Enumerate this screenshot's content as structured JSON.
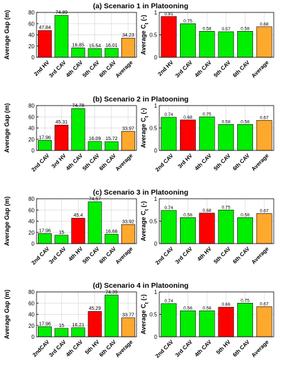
{
  "colors": {
    "hv": "#ff0000",
    "cav": "#00ee00",
    "avg": "#ffa82e",
    "edge": "#000000",
    "grid": "#d9d9d9"
  },
  "chart_data": [
    {
      "type": "bar",
      "title": "(a) Scenario 1 in Platooning",
      "panel": "gap",
      "ylabel": "Average Gap (m)",
      "ylim": [
        0,
        80
      ],
      "yticks": [
        0,
        20,
        40,
        60,
        80
      ],
      "grid": true,
      "categories": [
        "2nd HV",
        "3rd CAV",
        "4th CAV",
        "5th CAV",
        "6th CAV",
        "Average"
      ],
      "values": [
        47.84,
        74.89,
        16.85,
        15.54,
        16.01,
        34.23
      ],
      "labels": [
        "47.84",
        "74.89",
        "16.85",
        "15.54",
        "16.01",
        "34.23"
      ],
      "kinds": [
        "hv",
        "cav",
        "cav",
        "cav",
        "cav",
        "avg"
      ]
    },
    {
      "type": "bar",
      "title": "",
      "panel": "ct",
      "ylabel": "Average C",
      "ylabel_sub": "t",
      "ylabel_unit": " (-)",
      "ylim": [
        0,
        1
      ],
      "yticks": [
        0,
        0.5,
        1
      ],
      "grid": true,
      "categories": [
        "2nd HV",
        "3rd CAV",
        "4th CAV",
        "5th CAV",
        "6th CAV",
        "Average"
      ],
      "values": [
        0.91,
        0.75,
        0.58,
        0.57,
        0.58,
        0.68
      ],
      "labels": [
        "0.91",
        "0.75",
        "0.58",
        "0.57",
        "0.58",
        "0.68"
      ],
      "kinds": [
        "hv",
        "cav",
        "cav",
        "cav",
        "cav",
        "avg"
      ]
    },
    {
      "type": "bar",
      "title": "(b) Scenario 2 in Platooning",
      "panel": "gap",
      "ylabel": "Average Gap (m)",
      "ylim": [
        0,
        80
      ],
      "yticks": [
        0,
        20,
        40,
        60,
        80
      ],
      "grid": true,
      "categories": [
        "2nd CAV",
        "3rd HV",
        "4th CAV",
        "5th CAV",
        "6th CAV",
        "Average"
      ],
      "values": [
        17.96,
        45.31,
        74.78,
        16.09,
        15.72,
        33.97
      ],
      "labels": [
        "17.96",
        "45.31",
        "74.78",
        "16.09",
        "15.72",
        "33.97"
      ],
      "kinds": [
        "cav",
        "hv",
        "cav",
        "cav",
        "cav",
        "avg"
      ]
    },
    {
      "type": "bar",
      "title": "",
      "panel": "ct",
      "ylabel": "Average C",
      "ylabel_sub": "t",
      "ylabel_unit": " (-)",
      "ylim": [
        0,
        1
      ],
      "yticks": [
        0,
        0.5,
        1
      ],
      "grid": true,
      "categories": [
        "2nd CAV",
        "3rd HV",
        "4th CAV",
        "5th CAV",
        "6th CAV",
        "Average"
      ],
      "values": [
        0.74,
        0.68,
        0.75,
        0.58,
        0.58,
        0.67
      ],
      "labels": [
        "0.74",
        "0.68",
        "0.75",
        "0.58",
        "0.58",
        "0.67"
      ],
      "kinds": [
        "cav",
        "hv",
        "cav",
        "cav",
        "cav",
        "avg"
      ]
    },
    {
      "type": "bar",
      "title": "(c) Scenario 3 in Platooning",
      "panel": "gap",
      "ylabel": "Average Gap (m)",
      "ylim": [
        0,
        80
      ],
      "yticks": [
        0,
        20,
        40,
        60,
        80
      ],
      "grid": true,
      "categories": [
        "2nd CAV",
        "3rd CAV",
        "4th HV",
        "5th CAV",
        "6th CAV",
        "Average"
      ],
      "values": [
        17.96,
        15,
        45.4,
        74.57,
        16.66,
        33.92
      ],
      "labels": [
        "17.96",
        "15",
        "45.4",
        "74.57",
        "16.66",
        "33.92"
      ],
      "kinds": [
        "cav",
        "cav",
        "hv",
        "cav",
        "cav",
        "avg"
      ]
    },
    {
      "type": "bar",
      "title": "",
      "panel": "ct",
      "ylabel": "Average C",
      "ylabel_sub": "t",
      "ylabel_unit": " (-)",
      "ylim": [
        0,
        1
      ],
      "yticks": [
        0,
        0.5,
        1
      ],
      "grid": true,
      "categories": [
        "2nd CAV",
        "3rd CAV",
        "4th HV",
        "5th CAV",
        "6th CAV",
        "Average"
      ],
      "values": [
        0.74,
        0.58,
        0.68,
        0.75,
        0.58,
        0.67
      ],
      "labels": [
        "0.74",
        "0.58",
        "0.68",
        "0.75",
        "0.58",
        "0.67"
      ],
      "kinds": [
        "cav",
        "cav",
        "hv",
        "cav",
        "cav",
        "avg"
      ]
    },
    {
      "type": "bar",
      "title": "(d) Scenario 4 in Platooning",
      "panel": "gap",
      "ylabel": "Average Gap (m)",
      "ylim": [
        0,
        80
      ],
      "yticks": [
        0,
        20,
        40,
        60,
        80
      ],
      "grid": true,
      "categories": [
        "2ndCAV",
        "3rd CAV",
        "4th CAV",
        "5th HV",
        "6th CAV",
        "Average"
      ],
      "values": [
        17.96,
        15,
        16.21,
        45.29,
        74.39,
        33.77
      ],
      "labels": [
        "17.96",
        "15",
        "16.21",
        "45.29",
        "74.39",
        "33.77"
      ],
      "kinds": [
        "cav",
        "cav",
        "cav",
        "hv",
        "cav",
        "avg"
      ]
    },
    {
      "type": "bar",
      "title": "",
      "panel": "ct",
      "ylabel": "Average C",
      "ylabel_sub": "t",
      "ylabel_unit": " (-)",
      "ylim": [
        0,
        1
      ],
      "yticks": [
        0,
        0.5,
        1
      ],
      "grid": true,
      "categories": [
        "2nd CAV",
        "3rd CAV",
        "4th CAV",
        "5th HV",
        "6th CAV",
        "Average"
      ],
      "values": [
        0.74,
        0.58,
        0.58,
        0.66,
        0.75,
        0.67
      ],
      "labels": [
        "0.74",
        "0.58",
        "0.58",
        "0.66",
        "0.75",
        "0.67"
      ],
      "kinds": [
        "cav",
        "cav",
        "cav",
        "hv",
        "cav",
        "avg"
      ]
    }
  ]
}
